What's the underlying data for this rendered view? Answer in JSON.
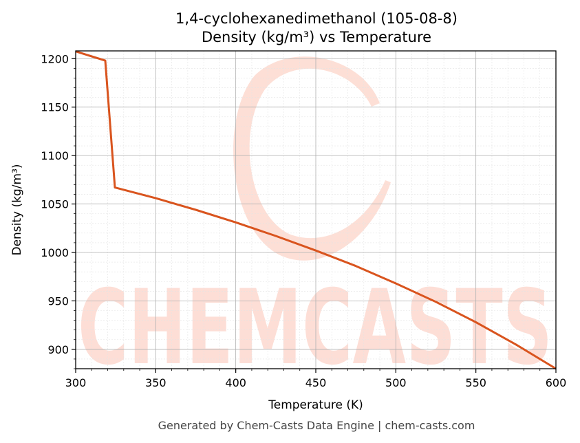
{
  "chart_data": {
    "type": "line",
    "title_line1": "1,4-cyclohexanedimethanol (105-08-8)",
    "title_line2": "Density (kg/m³) vs Temperature",
    "xlabel": "Temperature (K)",
    "ylabel": "Density (kg/m³)",
    "xlim": [
      300,
      600
    ],
    "ylim": [
      880,
      1208
    ],
    "x_ticks": [
      300,
      350,
      400,
      450,
      500,
      550,
      600
    ],
    "y_ticks": [
      900,
      950,
      1000,
      1050,
      1100,
      1150,
      1200
    ],
    "grid": true,
    "line_color": "#d9541e",
    "series": [
      {
        "x": [
          300,
          318.5,
          324.5,
          350,
          375,
          400,
          425,
          450,
          475,
          500,
          525,
          550,
          575,
          600
        ],
        "values": [
          1207.5,
          1198,
          1067,
          1056,
          1044,
          1031,
          1017,
          1002,
          986,
          968,
          949,
          928,
          905,
          880
        ]
      }
    ]
  },
  "watermark": {
    "text": "CHEMCASTS",
    "color": "#fdd9cf"
  },
  "footer": "Generated by Chem-Casts Data Engine | chem-casts.com"
}
